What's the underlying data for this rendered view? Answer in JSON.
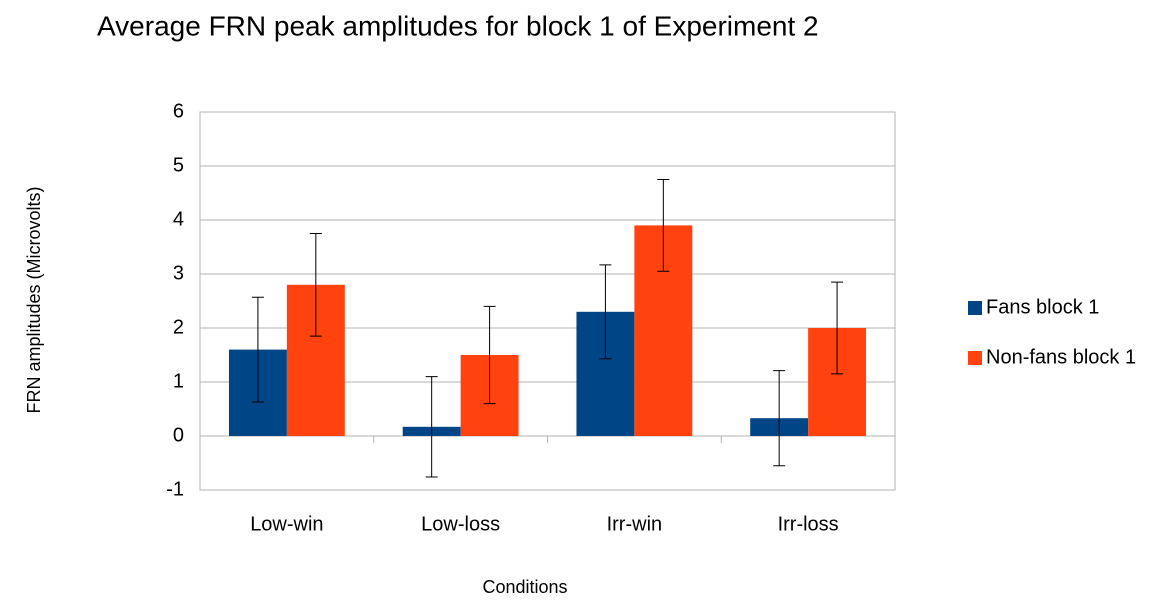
{
  "chart_data": {
    "type": "bar",
    "title": "Average FRN peak amplitudes for block 1 of Experiment 2",
    "x_label": "Conditions",
    "y_label": "FRN amplitudes (Microvolts)",
    "categories": [
      "Low-win",
      "Low-loss",
      "Irr-win",
      "Irr-loss"
    ],
    "series": [
      {
        "name": "Fans block 1",
        "color": "#004586",
        "values": [
          1.6,
          0.17,
          2.3,
          0.33
        ],
        "errors": [
          0.97,
          0.93,
          0.87,
          0.88
        ]
      },
      {
        "name": "Non-fans block 1",
        "color": "#ff420e",
        "values": [
          2.8,
          1.5,
          3.9,
          2.0
        ],
        "errors": [
          0.95,
          0.9,
          0.85,
          0.85
        ]
      }
    ],
    "ylim": [
      -1,
      6
    ],
    "yticks": [
      -1,
      0,
      1,
      2,
      3,
      4,
      5,
      6
    ],
    "grid": true,
    "legend": "right"
  }
}
